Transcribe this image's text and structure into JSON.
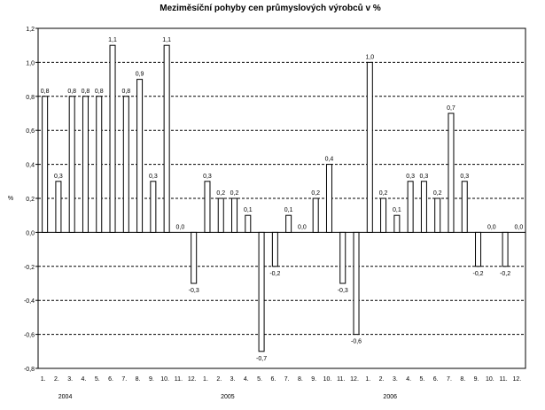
{
  "chart_data": {
    "type": "bar",
    "title": "Meziměsíční pohyby cen průmyslových výrobců v %",
    "xlabel": "",
    "ylabel": "%",
    "ylim": [
      -0.8,
      1.2
    ],
    "yticks": [
      -0.8,
      -0.6,
      -0.4,
      -0.2,
      0.0,
      0.2,
      0.4,
      0.6,
      0.8,
      1.0,
      1.2
    ],
    "ytick_labels": [
      "-0,8",
      "-0,6",
      "-0,4",
      "-0,2",
      "0,0",
      "0,2",
      "0,4",
      "0,6",
      "0,8",
      "1,0",
      "1,2"
    ],
    "grid": true,
    "categories": [
      "1.",
      "2.",
      "3.",
      "4.",
      "5.",
      "6.",
      "7.",
      "8.",
      "9.",
      "10.",
      "11.",
      "12.",
      "1.",
      "2.",
      "3.",
      "4.",
      "5.",
      "6.",
      "7.",
      "8.",
      "9.",
      "10.",
      "11.",
      "12.",
      "1.",
      "2.",
      "3.",
      "4.",
      "5.",
      "6.",
      "7.",
      "8.",
      "9.",
      "10.",
      "11.",
      "12."
    ],
    "years": [
      "2004",
      "2005",
      "2006"
    ],
    "values": [
      0.8,
      0.3,
      0.8,
      0.8,
      0.8,
      1.1,
      0.8,
      0.9,
      0.3,
      1.1,
      0.0,
      -0.3,
      0.3,
      0.2,
      0.2,
      0.1,
      -0.7,
      -0.2,
      0.1,
      0.0,
      0.2,
      0.4,
      -0.3,
      -0.6,
      1.0,
      0.2,
      0.1,
      0.3,
      0.3,
      0.2,
      0.7,
      0.3,
      -0.2,
      0.0,
      -0.2,
      0.0
    ],
    "data_labels": [
      "0,8",
      "0,3",
      "0,8",
      "0,8",
      "0,8",
      "1,1",
      "0,8",
      "0,9",
      "0,3",
      "1,1",
      "0,0",
      "-0,3",
      "0,3",
      "0,2",
      "0,2",
      "0,1",
      "-0,7",
      "-0,2",
      "0,1",
      "0,0",
      "0,2",
      "0,4",
      "-0,3",
      "-0,6",
      "1,0",
      "0,2",
      "0,1",
      "0,3",
      "0,3",
      "0,2",
      "0,7",
      "0,3",
      "-0,2",
      "0,0",
      "-0,2",
      "0,0"
    ]
  }
}
